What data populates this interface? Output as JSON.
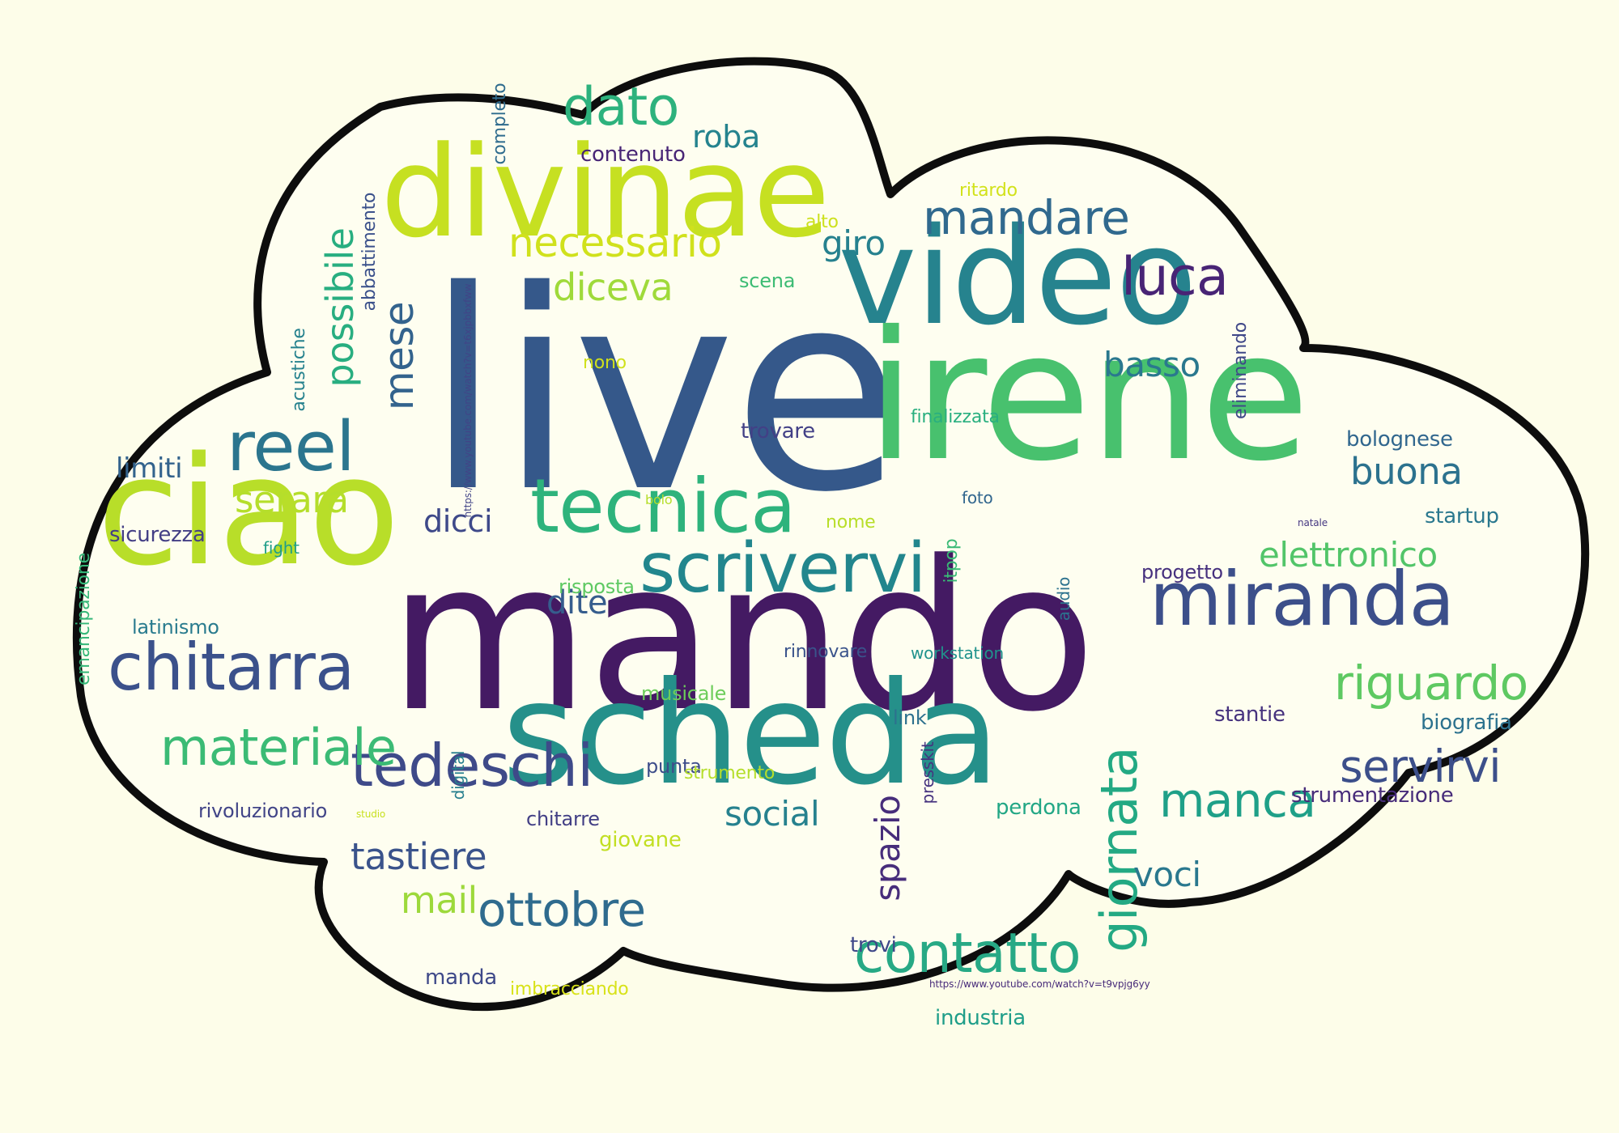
{
  "colors": {
    "background": "#fdfde9",
    "cloud_fill": "#fefef0",
    "cloud_outline": "#0d0d0d"
  },
  "words": [
    {
      "text": "live",
      "color": "#35588a"
    },
    {
      "text": "mando",
      "color": "#441a63"
    },
    {
      "text": "ciao",
      "color": "#b8de29"
    },
    {
      "text": "irene",
      "color": "#48c16e"
    },
    {
      "text": "video",
      "color": "#26838e"
    },
    {
      "text": "scheda",
      "color": "#25908a"
    },
    {
      "text": "divinae",
      "color": "#c6e021"
    },
    {
      "text": "miranda",
      "color": "#3c4f8a"
    },
    {
      "text": "scrivervi",
      "color": "#22868d"
    },
    {
      "text": "tecnica",
      "color": "#2eb37c"
    },
    {
      "text": "chitarra",
      "color": "#3b518b"
    },
    {
      "text": "reel",
      "color": "#2b758e"
    },
    {
      "text": "tedeschi",
      "color": "#3e4a89"
    },
    {
      "text": "materiale",
      "color": "#3bbb75"
    },
    {
      "text": "contatto",
      "color": "#27a985"
    },
    {
      "text": "ottobre",
      "color": "#2f6b8e"
    },
    {
      "text": "mandare",
      "color": "#30698e"
    },
    {
      "text": "riguardo",
      "color": "#5ec962"
    },
    {
      "text": "manca",
      "color": "#1fa088"
    },
    {
      "text": "dato",
      "color": "#2db27d"
    },
    {
      "text": "giornata",
      "color": "#23a983"
    },
    {
      "text": "servirvi",
      "color": "#3c4f8a"
    },
    {
      "text": "necessario",
      "color": "#d0e11c"
    },
    {
      "text": "luca",
      "color": "#482475"
    },
    {
      "text": "possibile",
      "color": "#28ae80"
    },
    {
      "text": "mese",
      "color": "#33638d"
    },
    {
      "text": "diceva",
      "color": "#9fda3a"
    },
    {
      "text": "basso",
      "color": "#2a788e"
    },
    {
      "text": "buona",
      "color": "#2c728e"
    },
    {
      "text": "elettronico",
      "color": "#52c569"
    },
    {
      "text": "serara",
      "color": "#b5de2b"
    },
    {
      "text": "social",
      "color": "#26818e"
    },
    {
      "text": "spazio",
      "color": "#472d7b"
    },
    {
      "text": "tastiere",
      "color": "#3a538b"
    },
    {
      "text": "voci",
      "color": "#2a788e"
    },
    {
      "text": "mail",
      "color": "#9dd93b"
    },
    {
      "text": "roba",
      "color": "#25838e"
    },
    {
      "text": "giro",
      "color": "#26818e"
    },
    {
      "text": "dicci",
      "color": "#3e4989"
    },
    {
      "text": "dite",
      "color": "#365d8d"
    },
    {
      "text": "limiti",
      "color": "#33638d"
    },
    {
      "text": "bolognese",
      "color": "#31678e"
    },
    {
      "text": "startup",
      "color": "#2a788e"
    },
    {
      "text": "biografia",
      "color": "#2c728e"
    },
    {
      "text": "strumentazione",
      "color": "#472c7a"
    },
    {
      "text": "stantie",
      "color": "#46327e"
    },
    {
      "text": "perdona",
      "color": "#22a785"
    },
    {
      "text": "industria",
      "color": "#1f9e89"
    },
    {
      "text": "imbracciando",
      "color": "#d8e219"
    },
    {
      "text": "manda",
      "color": "#3e4989"
    },
    {
      "text": "trovi",
      "color": "#3f4889"
    },
    {
      "text": "rivoluzionario",
      "color": "#414487"
    },
    {
      "text": "chitarre",
      "color": "#423f85"
    },
    {
      "text": "giovane",
      "color": "#c2df23"
    },
    {
      "text": "punta",
      "color": "#3d4d8a"
    },
    {
      "text": "strumento",
      "color": "#b5de2b"
    },
    {
      "text": "musicale",
      "color": "#6ccd5a"
    },
    {
      "text": "rinnovare",
      "color": "#3a538b"
    },
    {
      "text": "workstation",
      "color": "#20928c"
    },
    {
      "text": "risposta",
      "color": "#5ec962"
    },
    {
      "text": "progetto",
      "color": "#46307e"
    },
    {
      "text": "latinismo",
      "color": "#297b8e"
    },
    {
      "text": "sicurezza",
      "color": "#433e85"
    },
    {
      "text": "fight",
      "color": "#1f9e89"
    },
    {
      "text": "emancipazione",
      "color": "#35b779"
    },
    {
      "text": "bolo",
      "color": "#b5de2b"
    },
    {
      "text": "nome",
      "color": "#b8de29"
    },
    {
      "text": "foto",
      "color": "#31668e"
    },
    {
      "text": "itpop",
      "color": "#3aba76"
    },
    {
      "text": "audio",
      "color": "#2c728e"
    },
    {
      "text": "finalizzata",
      "color": "#29af7f"
    },
    {
      "text": "trovare",
      "color": "#424086"
    },
    {
      "text": "nono",
      "color": "#d0e11c"
    },
    {
      "text": "scena",
      "color": "#3dbc74"
    },
    {
      "text": "alto",
      "color": "#cde11d"
    },
    {
      "text": "ritardo",
      "color": "#d2e21b"
    },
    {
      "text": "contenuto",
      "color": "#482576"
    },
    {
      "text": "completo",
      "color": "#2f6c8e"
    },
    {
      "text": "abbattimento",
      "color": "#3b518b"
    },
    {
      "text": "acustiche",
      "color": "#26828e"
    },
    {
      "text": "eliminando",
      "color": "#3f4788"
    },
    {
      "text": "natale",
      "color": "#453781"
    },
    {
      "text": "link",
      "color": "#2d718e"
    },
    {
      "text": "presskit",
      "color": "#46337f"
    },
    {
      "text": "digital",
      "color": "#277f8e"
    },
    {
      "text": "studio",
      "color": "#c8e020"
    },
    {
      "text": "https://www.youtube.com/watch?v=t6xjpbbxfww",
      "color": "#414487"
    },
    {
      "text": "https://www.youtube.com/watch?v=t9vpjg6yy",
      "color": "#472a7a"
    }
  ]
}
